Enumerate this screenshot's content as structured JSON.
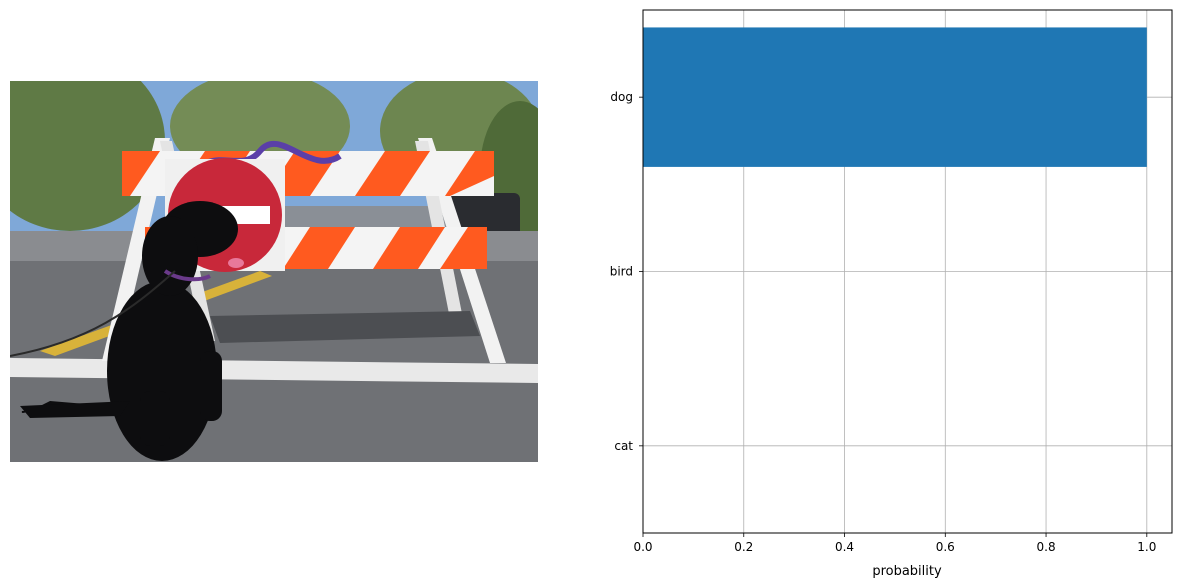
{
  "figure": {
    "image_subject": "black dog sitting in street in front of orange-and-white barricade with DO NOT ENTER sign"
  },
  "chart_data": {
    "type": "bar",
    "orientation": "horizontal",
    "categories": [
      "dog",
      "bird",
      "cat"
    ],
    "values": [
      1.0,
      0.0,
      0.0
    ],
    "title": "",
    "xlabel": "probability",
    "ylabel": "",
    "xlim": [
      -0.0,
      1.05
    ],
    "xticks": [
      0.0,
      0.2,
      0.4,
      0.6,
      0.8,
      1.0
    ],
    "xtick_labels": [
      "0.0",
      "0.2",
      "0.4",
      "0.6",
      "0.8",
      "1.0"
    ],
    "grid": true,
    "bar_color": "#1f77b4"
  }
}
